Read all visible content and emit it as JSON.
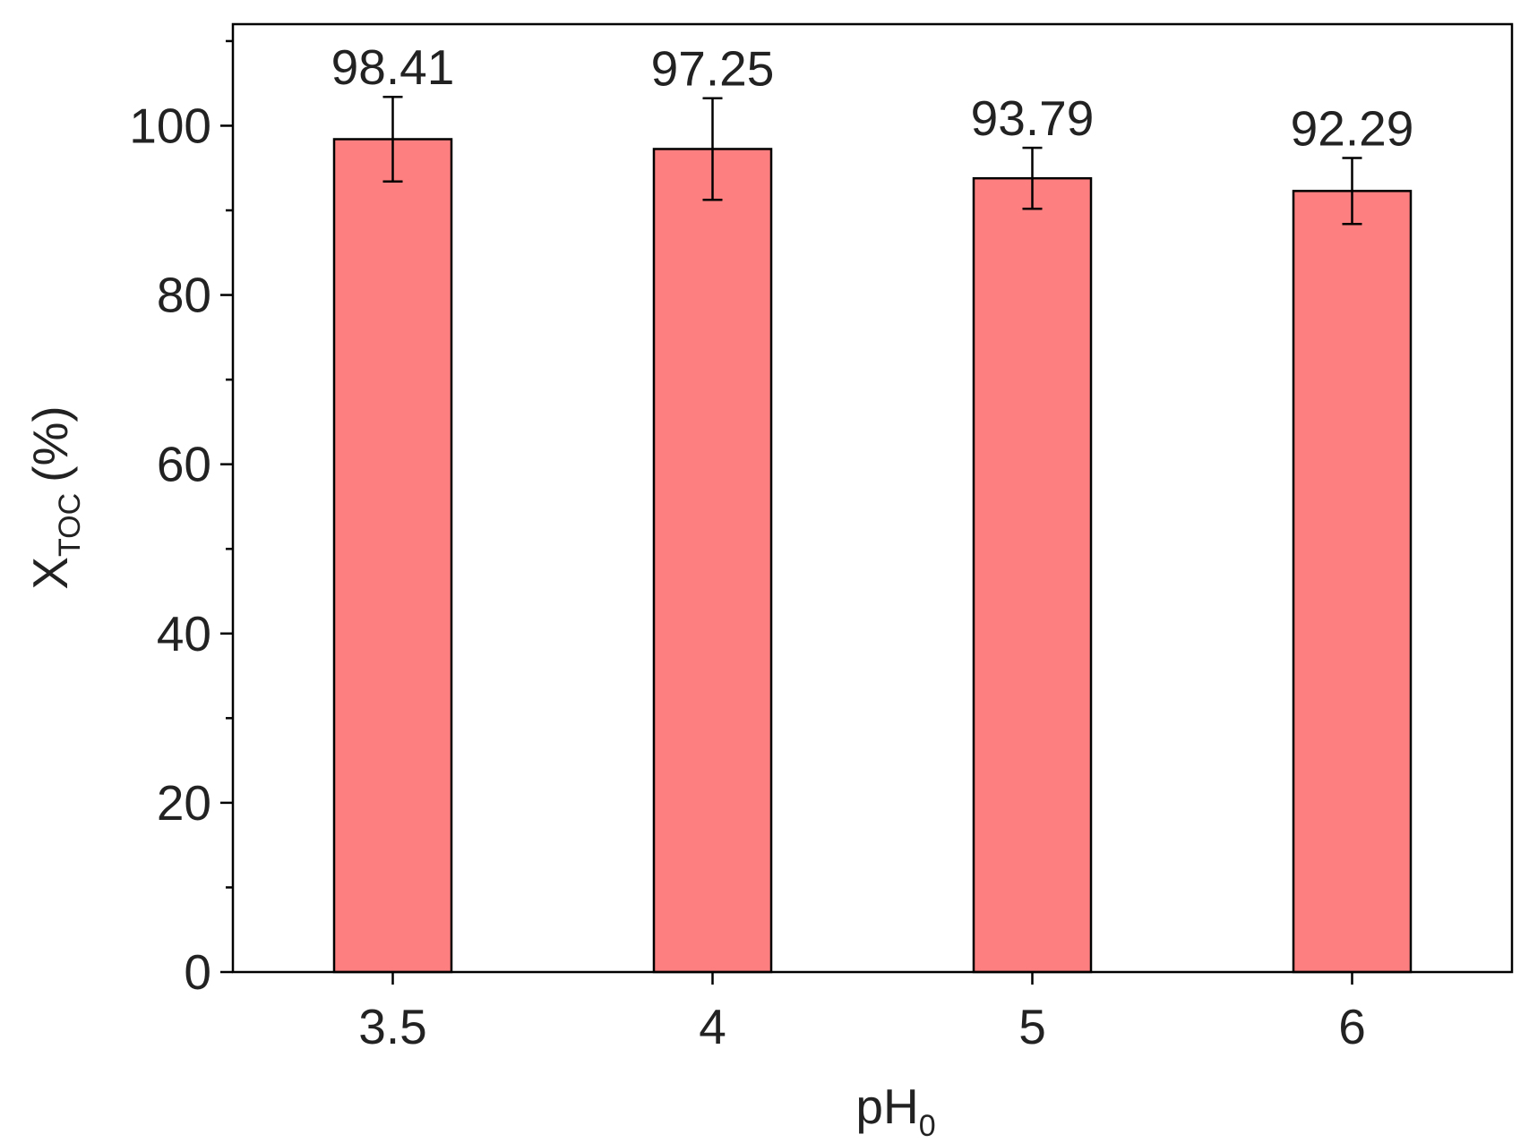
{
  "chart_data": {
    "type": "bar",
    "categories": [
      "3.5",
      "4",
      "5",
      "6"
    ],
    "values": [
      98.41,
      97.25,
      93.79,
      92.29
    ],
    "errors": [
      5.0,
      6.0,
      3.6,
      3.9
    ],
    "color": "#fe7f80",
    "ylim": [
      0,
      112
    ],
    "yticks": [
      0,
      20,
      40,
      60,
      80,
      100
    ],
    "yminor_ticks": [
      10,
      30,
      50,
      70,
      90,
      110
    ],
    "x_label": {
      "main": "pH",
      "sub": "0"
    },
    "y_label": {
      "main": "X",
      "sub": "TOC",
      "unit": "(%)"
    }
  }
}
